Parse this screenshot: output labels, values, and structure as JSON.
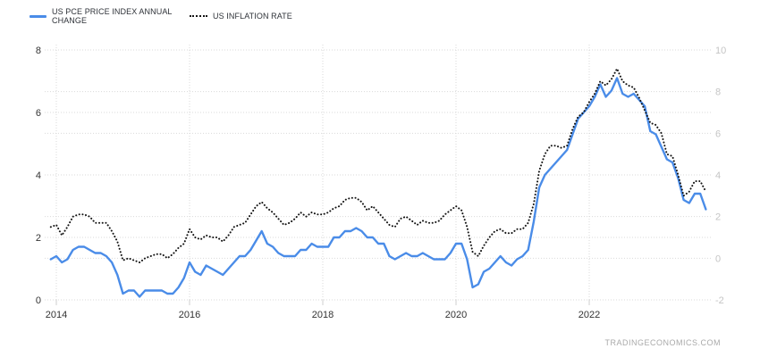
{
  "legend": {
    "items": [
      {
        "label": "US PCE PRICE INDEX ANNUAL CHANGE",
        "color": "#4a8ce8",
        "style": "solid"
      },
      {
        "label": "US INFLATION RATE",
        "color": "#141414",
        "style": "dotted"
      }
    ]
  },
  "watermark": "TRADINGECONOMICS.COM",
  "colors": {
    "pce_blue": "#4a8ce8",
    "inflation_black": "#141414",
    "axis_text_dark": "#333333",
    "axis_text_light": "#c5c5c5",
    "gridline": "#d9d9d9"
  },
  "chart_data": {
    "type": "line",
    "title": "",
    "xlabel": "",
    "ylabel": "",
    "grid": true,
    "legend_position": "top-left",
    "x_start": "2013-12",
    "x_end": "2023-10",
    "frequency": "monthly",
    "x_ticks": [
      {
        "year": 2014,
        "label": "2014"
      },
      {
        "year": 2016,
        "label": "2016"
      },
      {
        "year": 2018,
        "label": "2018"
      },
      {
        "year": 2020,
        "label": "2020"
      },
      {
        "year": 2022,
        "label": "2022"
      }
    ],
    "left_axis": {
      "range": [
        0,
        8
      ],
      "ticks": [
        0,
        2,
        4,
        6,
        8
      ]
    },
    "right_axis": {
      "range": [
        -2,
        10
      ],
      "ticks": [
        -2,
        0,
        2,
        4,
        6,
        8,
        10
      ]
    },
    "series": [
      {
        "name": "US PCE PRICE INDEX ANNUAL CHANGE",
        "axis": "left",
        "style": "solid",
        "color": "#4a8ce8",
        "values": [
          1.3,
          1.4,
          1.2,
          1.3,
          1.6,
          1.7,
          1.7,
          1.6,
          1.5,
          1.5,
          1.4,
          1.2,
          0.8,
          0.2,
          0.3,
          0.3,
          0.1,
          0.3,
          0.3,
          0.3,
          0.3,
          0.2,
          0.2,
          0.4,
          0.7,
          1.2,
          0.9,
          0.8,
          1.1,
          1.0,
          0.9,
          0.8,
          1.0,
          1.2,
          1.4,
          1.4,
          1.6,
          1.9,
          2.2,
          1.8,
          1.7,
          1.5,
          1.4,
          1.4,
          1.4,
          1.6,
          1.6,
          1.8,
          1.7,
          1.7,
          1.7,
          2.0,
          2.0,
          2.2,
          2.2,
          2.3,
          2.2,
          2.0,
          2.0,
          1.8,
          1.8,
          1.4,
          1.3,
          1.4,
          1.5,
          1.4,
          1.4,
          1.5,
          1.4,
          1.3,
          1.3,
          1.3,
          1.5,
          1.8,
          1.8,
          1.3,
          0.4,
          0.5,
          0.9,
          1.0,
          1.2,
          1.4,
          1.2,
          1.1,
          1.3,
          1.4,
          1.6,
          2.5,
          3.6,
          4.0,
          4.2,
          4.4,
          4.6,
          4.8,
          5.3,
          5.8,
          6.0,
          6.2,
          6.5,
          6.9,
          6.5,
          6.7,
          7.1,
          6.6,
          6.5,
          6.6,
          6.4,
          6.2,
          5.4,
          5.3,
          4.9,
          4.5,
          4.4,
          3.9,
          3.2,
          3.1,
          3.4,
          3.4,
          2.9
        ]
      },
      {
        "name": "US INFLATION RATE",
        "axis": "right",
        "style": "dotted",
        "color": "#141414",
        "values": [
          1.5,
          1.6,
          1.1,
          1.5,
          2.0,
          2.1,
          2.1,
          2.0,
          1.7,
          1.7,
          1.7,
          1.3,
          0.8,
          -0.1,
          0.0,
          -0.1,
          -0.2,
          0.0,
          0.1,
          0.2,
          0.2,
          0.0,
          0.2,
          0.5,
          0.7,
          1.4,
          1.0,
          0.9,
          1.1,
          1.0,
          1.0,
          0.8,
          1.1,
          1.5,
          1.6,
          1.7,
          2.1,
          2.5,
          2.7,
          2.4,
          2.2,
          1.9,
          1.6,
          1.7,
          1.9,
          2.2,
          2.0,
          2.2,
          2.1,
          2.1,
          2.2,
          2.4,
          2.5,
          2.8,
          2.9,
          2.9,
          2.7,
          2.3,
          2.5,
          2.2,
          1.9,
          1.6,
          1.5,
          1.9,
          2.0,
          1.8,
          1.6,
          1.8,
          1.7,
          1.7,
          1.8,
          2.1,
          2.3,
          2.5,
          2.3,
          1.5,
          0.3,
          0.1,
          0.6,
          1.0,
          1.3,
          1.4,
          1.2,
          1.2,
          1.4,
          1.4,
          1.7,
          2.6,
          4.2,
          5.0,
          5.4,
          5.4,
          5.3,
          5.4,
          6.2,
          6.8,
          7.0,
          7.5,
          7.9,
          8.5,
          8.3,
          8.6,
          9.1,
          8.5,
          8.3,
          8.2,
          7.7,
          7.1,
          6.5,
          6.4,
          6.0,
          5.0,
          4.9,
          4.0,
          3.0,
          3.2,
          3.7,
          3.7,
          3.2
        ]
      }
    ]
  }
}
